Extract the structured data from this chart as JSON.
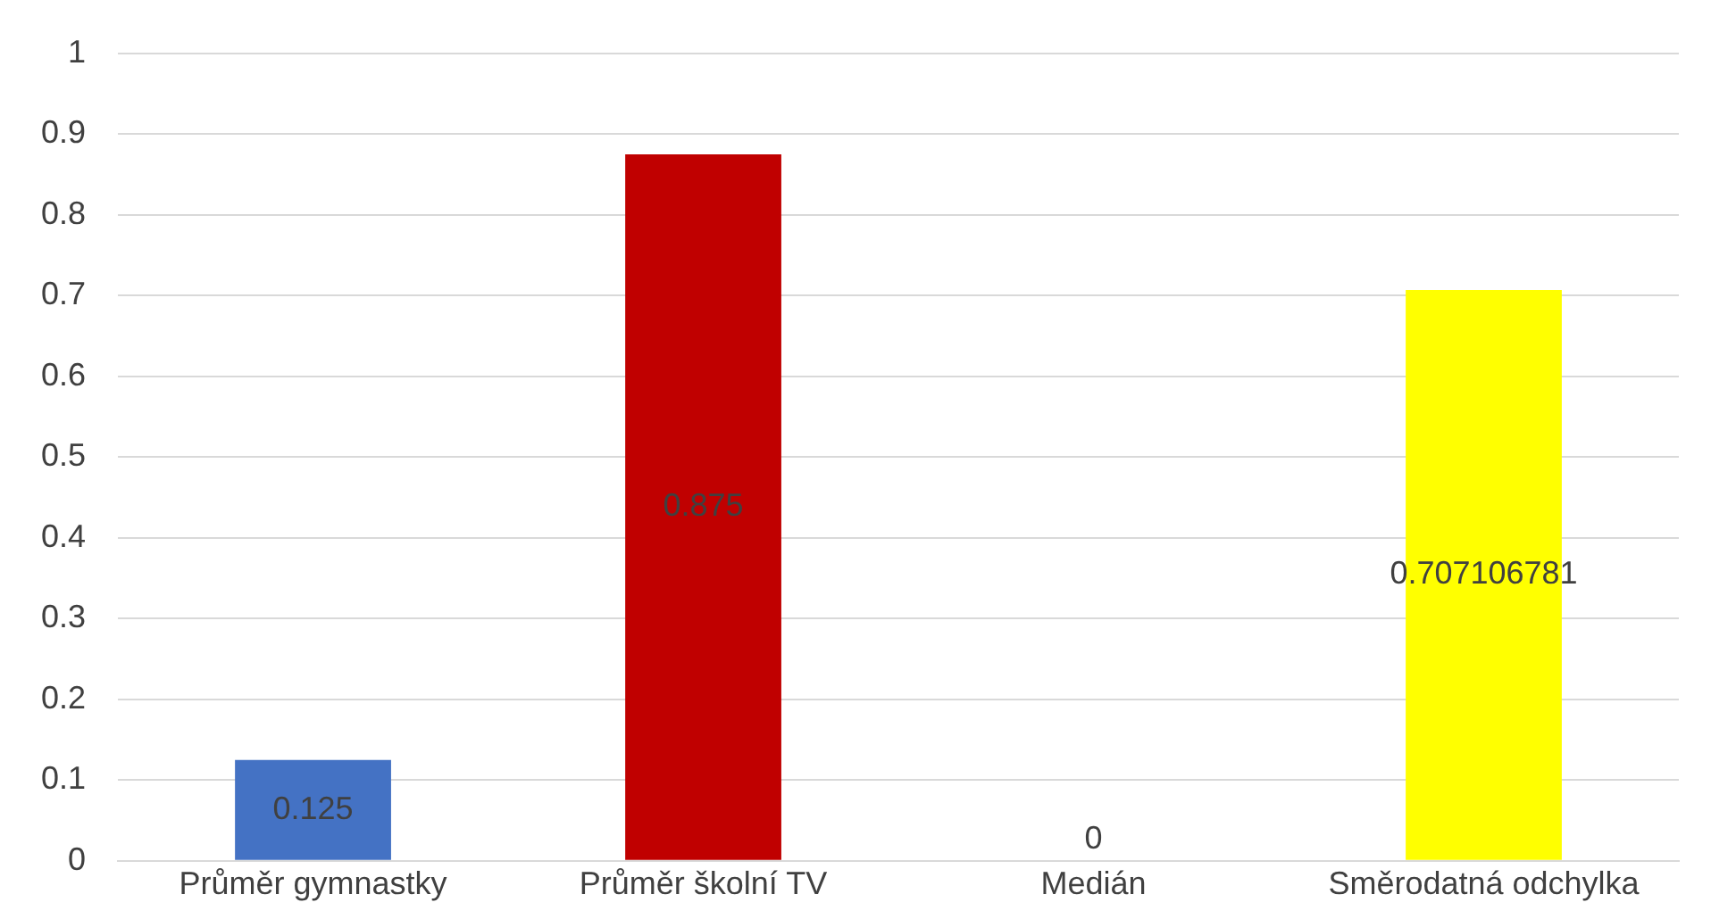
{
  "chart_data": {
    "type": "bar",
    "categories": [
      "Průměr gymnastky",
      "Průměr školní TV",
      "Medián",
      "Směrodatná odchylka"
    ],
    "values": [
      0.125,
      0.875,
      0,
      0.707106781
    ],
    "colors": [
      "#4472c4",
      "#c00000",
      "#a5a5a5",
      "#ffff00"
    ],
    "ylim": [
      0,
      1
    ],
    "yticks": [
      0,
      0.1,
      0.2,
      0.3,
      0.4,
      0.5,
      0.6,
      0.7,
      0.8,
      0.9,
      1
    ],
    "grid": "y",
    "legend": false,
    "data_labels": true
  }
}
